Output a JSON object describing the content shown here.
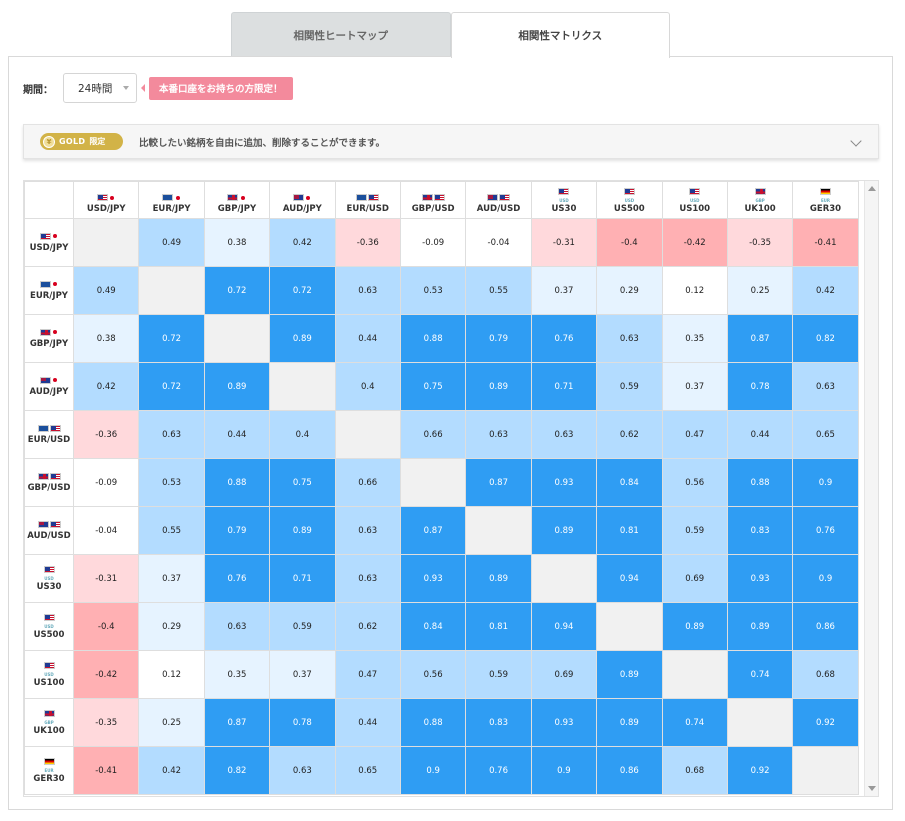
{
  "tabs": [
    {
      "label": "相関性ヒートマップ",
      "active": false
    },
    {
      "label": "相関性マトリクス",
      "active": true
    }
  ],
  "period": {
    "label": "期間：",
    "selected": "24時間"
  },
  "promo": {
    "label": "本番口座をお持ちの方限定！"
  },
  "gold": {
    "badge": "GOLD",
    "limit": "限定",
    "text": "比較したい銘柄を自由に追加、削除することができます。"
  },
  "colors": {
    "dark_positive": "#2f9df3",
    "mid_positive": "#b3dcff",
    "light_positive": "#e6f3ff",
    "neutral": "#ffffff",
    "light_negative": "#ffd9dc",
    "dark_negative": "#ffb0b3",
    "diagonal": "#f1f1f1"
  },
  "instruments": [
    {
      "label": "USD/JPY",
      "flags": [
        "us",
        "jp"
      ],
      "sub": ""
    },
    {
      "label": "EUR/JPY",
      "flags": [
        "eu",
        "jp"
      ],
      "sub": ""
    },
    {
      "label": "GBP/JPY",
      "flags": [
        "gb",
        "jp"
      ],
      "sub": ""
    },
    {
      "label": "AUD/JPY",
      "flags": [
        "au",
        "jp"
      ],
      "sub": ""
    },
    {
      "label": "EUR/USD",
      "flags": [
        "eu",
        "us"
      ],
      "sub": ""
    },
    {
      "label": "GBP/USD",
      "flags": [
        "gb",
        "us"
      ],
      "sub": ""
    },
    {
      "label": "AUD/USD",
      "flags": [
        "au",
        "us"
      ],
      "sub": ""
    },
    {
      "label": "US30",
      "flags": [
        "us"
      ],
      "sub": "USD"
    },
    {
      "label": "US500",
      "flags": [
        "us"
      ],
      "sub": "USD"
    },
    {
      "label": "US100",
      "flags": [
        "us"
      ],
      "sub": "USD"
    },
    {
      "label": "UK100",
      "flags": [
        "gb"
      ],
      "sub": "GBP"
    },
    {
      "label": "GER30",
      "flags": [
        "de"
      ],
      "sub": "EUR"
    }
  ],
  "matrix": [
    [
      null,
      "0.49",
      "0.38",
      "0.42",
      "-0.36",
      "-0.09",
      "-0.04",
      "-0.31",
      "-0.4",
      "-0.42",
      "-0.35",
      "-0.41"
    ],
    [
      "0.49",
      null,
      "0.72",
      "0.72",
      "0.63",
      "0.53",
      "0.55",
      "0.37",
      "0.29",
      "0.12",
      "0.25",
      "0.42"
    ],
    [
      "0.38",
      "0.72",
      null,
      "0.89",
      "0.44",
      "0.88",
      "0.79",
      "0.76",
      "0.63",
      "0.35",
      "0.87",
      "0.82"
    ],
    [
      "0.42",
      "0.72",
      "0.89",
      null,
      "0.4",
      "0.75",
      "0.89",
      "0.71",
      "0.59",
      "0.37",
      "0.78",
      "0.63"
    ],
    [
      "-0.36",
      "0.63",
      "0.44",
      "0.4",
      null,
      "0.66",
      "0.63",
      "0.63",
      "0.62",
      "0.47",
      "0.44",
      "0.65"
    ],
    [
      "-0.09",
      "0.53",
      "0.88",
      "0.75",
      "0.66",
      null,
      "0.87",
      "0.93",
      "0.84",
      "0.56",
      "0.88",
      "0.9"
    ],
    [
      "-0.04",
      "0.55",
      "0.79",
      "0.89",
      "0.63",
      "0.87",
      null,
      "0.89",
      "0.81",
      "0.59",
      "0.83",
      "0.76"
    ],
    [
      "-0.31",
      "0.37",
      "0.76",
      "0.71",
      "0.63",
      "0.93",
      "0.89",
      null,
      "0.94",
      "0.69",
      "0.93",
      "0.9"
    ],
    [
      "-0.4",
      "0.29",
      "0.63",
      "0.59",
      "0.62",
      "0.84",
      "0.81",
      "0.94",
      null,
      "0.89",
      "0.89",
      "0.86"
    ],
    [
      "-0.42",
      "0.12",
      "0.35",
      "0.37",
      "0.47",
      "0.56",
      "0.59",
      "0.69",
      "0.89",
      null,
      "0.74",
      "0.68"
    ],
    [
      "-0.35",
      "0.25",
      "0.87",
      "0.78",
      "0.44",
      "0.88",
      "0.83",
      "0.93",
      "0.89",
      "0.74",
      null,
      "0.92"
    ],
    [
      "-0.41",
      "0.42",
      "0.82",
      "0.63",
      "0.65",
      "0.9",
      "0.76",
      "0.9",
      "0.86",
      "0.68",
      "0.92",
      null
    ]
  ]
}
